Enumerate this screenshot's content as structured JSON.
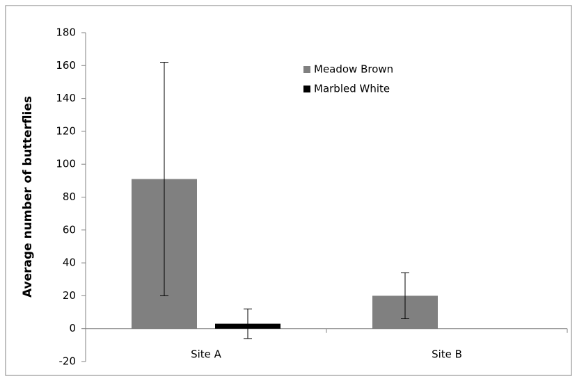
{
  "chart_data": {
    "type": "bar",
    "y_label": "Average number of butterflies",
    "categories": [
      "Site A",
      "Site B"
    ],
    "series": [
      {
        "name": "Meadow Brown",
        "color": "#808080",
        "values": [
          91,
          20
        ],
        "errors": [
          71,
          14
        ]
      },
      {
        "name": "Marbled White",
        "color": "#000000",
        "values": [
          3,
          null
        ],
        "errors": [
          9,
          null
        ]
      }
    ],
    "ylim": [
      -20,
      180
    ],
    "yticks": [
      -20,
      0,
      20,
      40,
      60,
      80,
      100,
      120,
      140,
      160,
      180
    ],
    "legend": "top-center"
  }
}
